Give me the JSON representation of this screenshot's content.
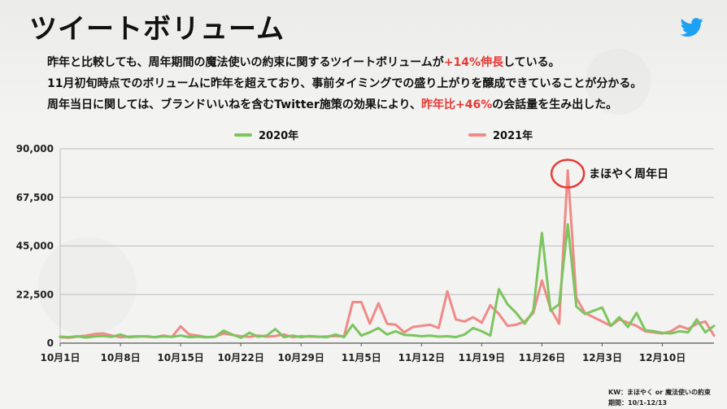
{
  "slide": {
    "title": "ツイートボリューム",
    "lines": [
      {
        "before": "昨年と比較しても、周年期間の魔法使いの約束に関するツイートボリュームが",
        "highlight": "+14%伸長",
        "after": "している。"
      },
      {
        "before": "11月初旬時点でのボリュームに昨年を超えており、事前タイミングでの盛り上がりを醸成できていることが分かる。",
        "highlight": "",
        "after": ""
      },
      {
        "before": "周年当日に関しては、ブランドいいねを含むTwitter施策の効果により、",
        "highlight": "昨年比+46%",
        "after": "の会話量を生み出した。"
      }
    ],
    "notes": {
      "kw": "KW：まほやく or 魔法使いの約束",
      "period": "期間：10/1-12/13"
    },
    "icon": "twitter-bird-icon"
  },
  "chart_data": {
    "type": "line",
    "x_tick_labels": [
      "10月1日",
      "10月8日",
      "10月15日",
      "10月22日",
      "10月29日",
      "11月5日",
      "11月12日",
      "11月19日",
      "11月26日",
      "12月3日",
      "12月10日"
    ],
    "ylim": [
      0,
      90000
    ],
    "y_ticks": [
      "0",
      "22,500",
      "45,000",
      "67,500",
      "90,000"
    ],
    "y_tick_values": [
      0,
      22500,
      45000,
      67500,
      90000
    ],
    "grid": true,
    "legend": "top",
    "annotation": {
      "text": "まほやく周年日"
    },
    "series": [
      {
        "name": "2020年",
        "color": "#7cc55f",
        "values": [
          3000,
          2800,
          3200,
          2600,
          3100,
          3300,
          2900,
          4000,
          2700,
          3000,
          3200,
          2800,
          3100,
          2900,
          3500,
          2800,
          3000,
          2700,
          2900,
          5800,
          4000,
          2500,
          4800,
          3000,
          3500,
          6500,
          2800,
          3500,
          2800,
          3300,
          3000,
          2800,
          4000,
          2800,
          8500,
          3500,
          5000,
          7000,
          4000,
          5500,
          3800,
          3600,
          3200,
          3500,
          3000,
          3200,
          2800,
          4000,
          7000,
          5500,
          3500,
          25000,
          18000,
          14000,
          9000,
          15000,
          51000,
          15000,
          18000,
          55000,
          17000,
          13500,
          15000,
          16500,
          8000,
          12000,
          7500,
          14000,
          6000,
          5500,
          4800,
          4500,
          5500,
          5000,
          11000,
          5000,
          8000
        ]
      },
      {
        "name": "2021年",
        "color": "#f08a87",
        "values": [
          2800,
          2500,
          3000,
          3500,
          4200,
          4500,
          3500,
          2700,
          3000,
          3200,
          3000,
          2800,
          3500,
          2900,
          7800,
          4000,
          3500,
          2800,
          3000,
          4500,
          3800,
          3200,
          2900,
          3500,
          3000,
          3300,
          4000,
          2800,
          3200,
          3000,
          2900,
          3100,
          3300,
          3200,
          19000,
          19000,
          9000,
          18500,
          9000,
          8500,
          5000,
          7500,
          8000,
          8500,
          7000,
          24000,
          11000,
          10000,
          12000,
          9500,
          17500,
          13500,
          8000,
          8500,
          10000,
          14000,
          29000,
          16000,
          9000,
          80000,
          21000,
          14000,
          12000,
          10000,
          8000,
          11000,
          9500,
          8000,
          5500,
          5000,
          4500,
          5500,
          8000,
          6500,
          9000,
          10000,
          3500
        ]
      }
    ]
  }
}
